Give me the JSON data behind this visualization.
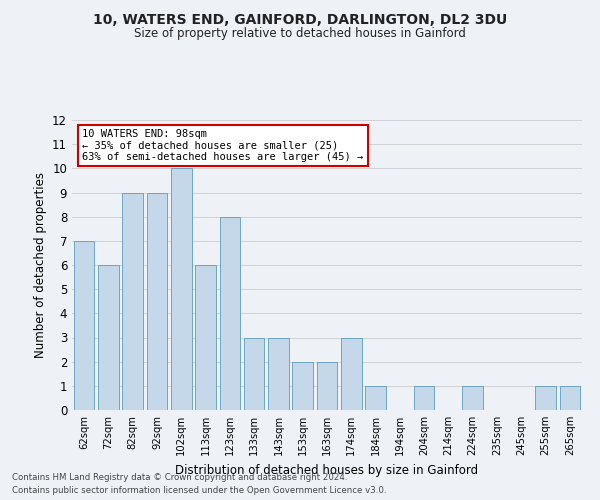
{
  "title1": "10, WATERS END, GAINFORD, DARLINGTON, DL2 3DU",
  "title2": "Size of property relative to detached houses in Gainford",
  "xlabel": "Distribution of detached houses by size in Gainford",
  "ylabel": "Number of detached properties",
  "categories": [
    "62sqm",
    "72sqm",
    "82sqm",
    "92sqm",
    "102sqm",
    "113sqm",
    "123sqm",
    "133sqm",
    "143sqm",
    "153sqm",
    "163sqm",
    "174sqm",
    "184sqm",
    "194sqm",
    "204sqm",
    "214sqm",
    "224sqm",
    "235sqm",
    "245sqm",
    "255sqm",
    "265sqm"
  ],
  "values": [
    7,
    6,
    9,
    9,
    10,
    6,
    8,
    3,
    3,
    2,
    2,
    3,
    1,
    0,
    1,
    0,
    1,
    0,
    0,
    1,
    1
  ],
  "bar_color": "#c5d8ea",
  "bar_edge_color": "#5a9dc0",
  "annotation_text": "10 WATERS END: 98sqm\n← 35% of detached houses are smaller (25)\n63% of semi-detached houses are larger (45) →",
  "annotation_box_color": "#ffffff",
  "annotation_border_color": "#cc0000",
  "ylim": [
    0,
    12
  ],
  "yticks": [
    0,
    1,
    2,
    3,
    4,
    5,
    6,
    7,
    8,
    9,
    10,
    11,
    12
  ],
  "footnote1": "Contains HM Land Registry data © Crown copyright and database right 2024.",
  "footnote2": "Contains public sector information licensed under the Open Government Licence v3.0.",
  "bg_color": "#eef2f7",
  "plot_bg_color": "#eef2f7"
}
